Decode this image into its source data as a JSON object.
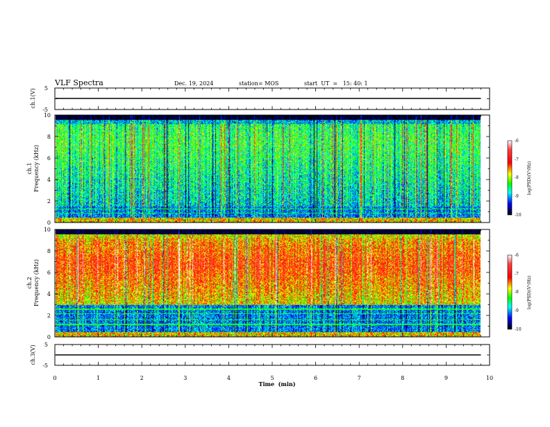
{
  "header": {
    "title": "VLF Spectra",
    "date": "Dec. 19, 2024",
    "station": "station= MOS",
    "start": "start  UT  =   15: 40: 1"
  },
  "chart_data": [
    {
      "type": "line",
      "panel": "ch1-waveform",
      "ylabel": "ch.1(V)",
      "ylim": [
        -5,
        5
      ],
      "ytick_labels": [
        "5",
        "-5"
      ],
      "trace_level": 0,
      "color": "#000000"
    },
    {
      "type": "heatmap",
      "panel": "ch1-spectrogram",
      "ylabel": [
        "ch.1",
        "Frequency  (kHz)"
      ],
      "ylim": [
        0,
        10
      ],
      "yticks": [
        "0",
        "2",
        "4",
        "6",
        "8",
        "10"
      ],
      "colorbar": {
        "label": "log(PSD)(V²/Hz)",
        "ticks": [
          "-6",
          "-7",
          "-8",
          "-9",
          "-10"
        ],
        "range": [
          -10,
          -6
        ]
      },
      "dominant_level": -8.3,
      "band_kHz": [
        1.5,
        9.5
      ]
    },
    {
      "type": "heatmap",
      "panel": "ch2-spectrogram",
      "ylabel": [
        "ch.2",
        "Frequency  (kHz)"
      ],
      "ylim": [
        0,
        10
      ],
      "yticks": [
        "0",
        "2",
        "4",
        "6",
        "8",
        "10"
      ],
      "colorbar": {
        "label": "log(PSD)(V²/Hz)",
        "ticks": [
          "-6",
          "-7",
          "-8",
          "-9",
          "-10"
        ],
        "range": [
          -10,
          -6
        ]
      },
      "dominant_level": -7.2,
      "band_kHz": [
        3.0,
        9.5
      ]
    },
    {
      "type": "line",
      "panel": "ch3-waveform",
      "ylabel": "ch.3(V)",
      "ylim": [
        -5,
        5
      ],
      "ytick_labels": [
        "5",
        "-5"
      ],
      "trace_level": 0,
      "color": "#000000"
    }
  ],
  "x_axis": {
    "label": "Time  (min)",
    "range": [
      0,
      10
    ],
    "ticks": [
      "0",
      "1",
      "2",
      "3",
      "4",
      "5",
      "6",
      "7",
      "8",
      "9",
      "10"
    ],
    "data_end": 9.8
  },
  "colorscale": [
    "#ffffff",
    "#ff0000",
    "#ffff00",
    "#00ff00",
    "#00ffff",
    "#0000ff",
    "#000000"
  ]
}
